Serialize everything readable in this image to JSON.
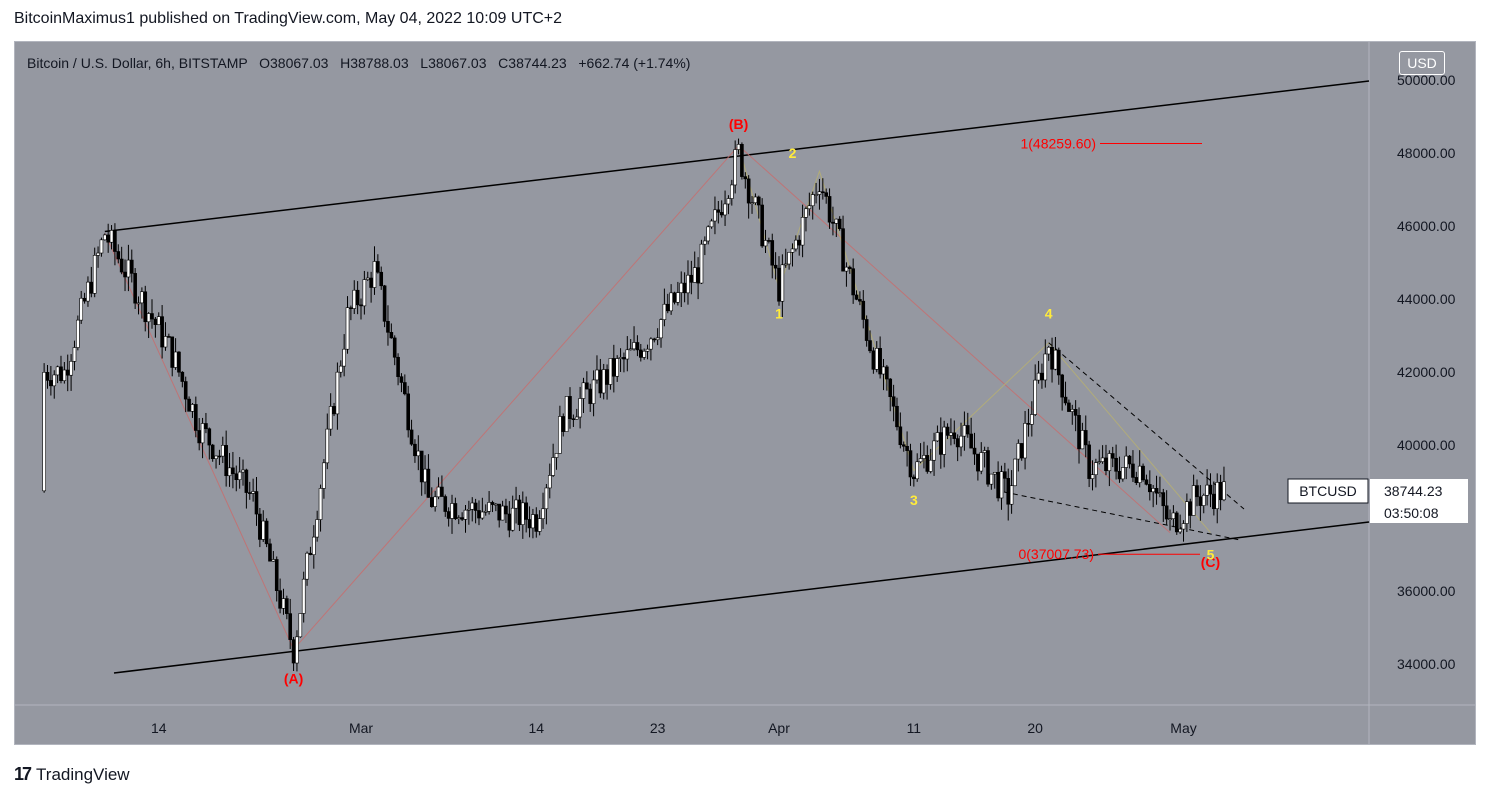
{
  "header": {
    "publisher_line": "BitcoinMaximus1 published on TradingView.com, May 04, 2022 10:09 UTC+2"
  },
  "footer": {
    "brand": "TradingView",
    "icon": "tradingview-logo-icon"
  },
  "symbol_bar": {
    "title": "Bitcoin / U.S. Dollar, 6h, BITSTAMP",
    "open_label": "O",
    "open": "38067.03",
    "high_label": "H",
    "high": "38788.03",
    "low_label": "L",
    "low": "38067.03",
    "close_label": "C",
    "close": "38744.23",
    "change": "+662.74 (+1.74%)"
  },
  "currency": "USD",
  "price_tag": {
    "symbol": "BTCUSD",
    "price": "38744.23",
    "countdown": "03:50:08"
  },
  "colors": {
    "background": "#9598a1",
    "candle_up": "#ffffff",
    "candle_down": "#000000",
    "wave_red": "#ff0000",
    "wave_yellow": "#ffeb3b",
    "channel": "#000000"
  },
  "chart_data": {
    "type": "candlestick",
    "y_ticks": [
      "34000.00",
      "36000.00",
      "38000.00",
      "40000.00",
      "42000.00",
      "44000.00",
      "46000.00",
      "48000.00",
      "50000.00"
    ],
    "x_ticks": [
      "14",
      "Mar",
      "14",
      "23",
      "Apr",
      "11",
      "20",
      "May"
    ],
    "ylim": [
      33000,
      51000
    ],
    "grid": false,
    "anchors": [
      [
        "2022-02-07",
        42000
      ],
      [
        "2022-02-10",
        45800
      ],
      [
        "2022-02-15",
        42500
      ],
      [
        "2022-02-17",
        40500
      ],
      [
        "2022-02-21",
        38500
      ],
      [
        "2022-02-24",
        34400
      ],
      [
        "2022-02-28",
        43500
      ],
      [
        "2022-03-02",
        44800
      ],
      [
        "2022-03-06",
        38500
      ],
      [
        "2022-03-10",
        38200
      ],
      [
        "2022-03-14",
        38000
      ],
      [
        "2022-03-16",
        40800
      ],
      [
        "2022-03-22",
        42800
      ],
      [
        "2022-03-26",
        44800
      ],
      [
        "2022-03-29",
        48000
      ],
      [
        "2022-04-01",
        44300
      ],
      [
        "2022-04-04",
        47300
      ],
      [
        "2022-04-08",
        42500
      ],
      [
        "2022-04-11",
        39300
      ],
      [
        "2022-04-14",
        40500
      ],
      [
        "2022-04-18",
        38600
      ],
      [
        "2022-04-21",
        42800
      ],
      [
        "2022-04-24",
        39400
      ],
      [
        "2022-04-28",
        39400
      ],
      [
        "2022-04-30",
        37800
      ],
      [
        "2022-05-02",
        38600
      ],
      [
        "2022-05-04",
        38744.23
      ]
    ],
    "wave_labels": [
      {
        "text": "(A)",
        "date": "2022-02-24",
        "price": 33600,
        "color": "red"
      },
      {
        "text": "(B)",
        "date": "2022-03-29",
        "price": 48800,
        "color": "red"
      },
      {
        "text": "(C)",
        "date": "2022-05-03",
        "price": 36800,
        "color": "red"
      },
      {
        "text": "1",
        "date": "2022-04-01",
        "price": 43600,
        "color": "yellow"
      },
      {
        "text": "2",
        "date": "2022-04-02",
        "price": 48000,
        "color": "yellow"
      },
      {
        "text": "3",
        "date": "2022-04-11",
        "price": 38500,
        "color": "yellow"
      },
      {
        "text": "4",
        "date": "2022-04-21",
        "price": 43600,
        "color": "yellow"
      },
      {
        "text": "5",
        "date": "2022-05-03",
        "price": 37000,
        "color": "yellow"
      }
    ],
    "fib_levels": [
      {
        "label": "1(48259.60)",
        "price": 48259.6
      },
      {
        "label": "0(37007.73)",
        "price": 37007.73
      }
    ]
  }
}
